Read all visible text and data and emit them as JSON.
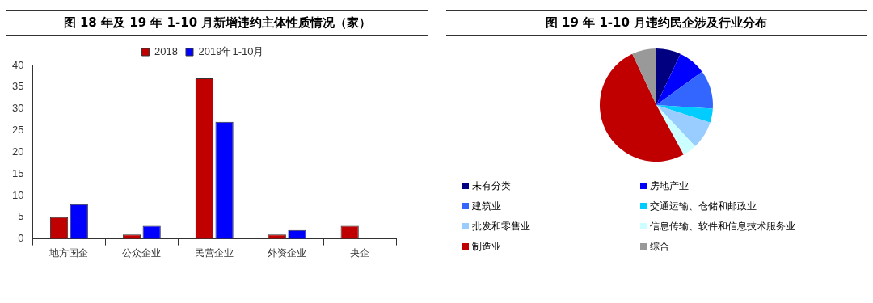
{
  "chart_data": [
    {
      "type": "bar",
      "title": "图  18 年及 19 年 1-10 月新增违约主体性质情况（家）",
      "categories": [
        "地方国企",
        "公众企业",
        "民营企业",
        "外资企业",
        "央企"
      ],
      "series": [
        {
          "name": "2018",
          "color": "#c00000",
          "values": [
            5,
            1,
            37,
            1,
            3
          ]
        },
        {
          "name": "2019年1-10月",
          "color": "#0000ff",
          "values": [
            8,
            3,
            27,
            2,
            0
          ]
        }
      ],
      "ylim": [
        0,
        40
      ],
      "yticks": [
        0,
        5,
        10,
        15,
        20,
        25,
        30,
        35,
        40
      ],
      "grid": false,
      "legend": "top"
    },
    {
      "type": "pie",
      "title": "图  19 年 1-10 月违约民企涉及行业分布",
      "categories": [
        "未有分类",
        "房地产业",
        "建筑业",
        "交通运输、仓储和邮政业",
        "批发和零售业",
        "信息传输、软件和信息技术服务业",
        "制造业",
        "综合"
      ],
      "values": [
        7,
        8,
        11,
        4,
        8,
        4,
        51,
        7
      ],
      "colors": [
        "#000080",
        "#0000ff",
        "#3366ff",
        "#00ccff",
        "#99ccff",
        "#ccffff",
        "#c00000",
        "#999999"
      ],
      "legend": "bottom"
    }
  ]
}
